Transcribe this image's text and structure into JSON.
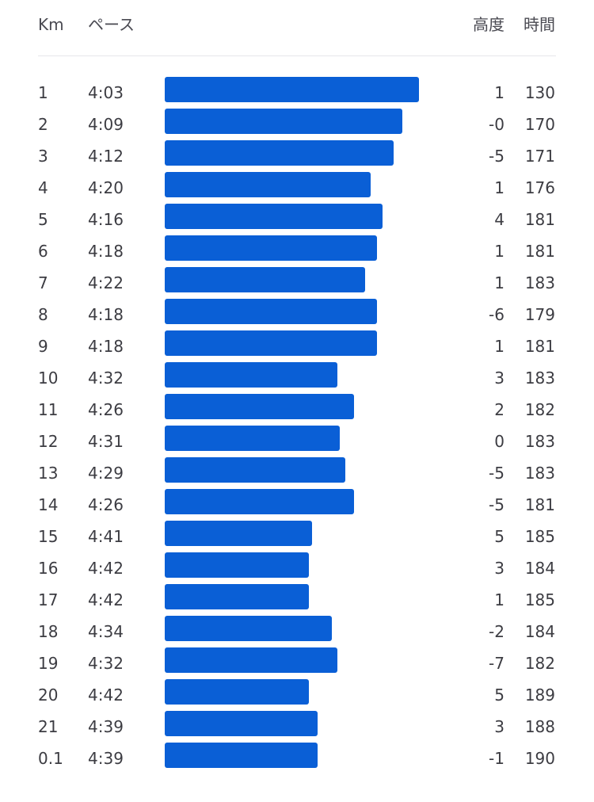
{
  "chart_data": {
    "type": "table",
    "columns": [
      "Km",
      "ペース",
      "高度",
      "時間"
    ],
    "bar_color": "#0a5fd6",
    "rows": [
      {
        "km": "1",
        "pace": "4:03",
        "pace_sec": 243,
        "elev": "1",
        "time": "130"
      },
      {
        "km": "2",
        "pace": "4:09",
        "pace_sec": 249,
        "elev": "-0",
        "time": "170"
      },
      {
        "km": "3",
        "pace": "4:12",
        "pace_sec": 252,
        "elev": "-5",
        "time": "171"
      },
      {
        "km": "4",
        "pace": "4:20",
        "pace_sec": 260,
        "elev": "1",
        "time": "176"
      },
      {
        "km": "5",
        "pace": "4:16",
        "pace_sec": 256,
        "elev": "4",
        "time": "181"
      },
      {
        "km": "6",
        "pace": "4:18",
        "pace_sec": 258,
        "elev": "1",
        "time": "181"
      },
      {
        "km": "7",
        "pace": "4:22",
        "pace_sec": 262,
        "elev": "1",
        "time": "183"
      },
      {
        "km": "8",
        "pace": "4:18",
        "pace_sec": 258,
        "elev": "-6",
        "time": "179"
      },
      {
        "km": "9",
        "pace": "4:18",
        "pace_sec": 258,
        "elev": "1",
        "time": "181"
      },
      {
        "km": "10",
        "pace": "4:32",
        "pace_sec": 272,
        "elev": "3",
        "time": "183"
      },
      {
        "km": "11",
        "pace": "4:26",
        "pace_sec": 266,
        "elev": "2",
        "time": "182"
      },
      {
        "km": "12",
        "pace": "4:31",
        "pace_sec": 271,
        "elev": "0",
        "time": "183"
      },
      {
        "km": "13",
        "pace": "4:29",
        "pace_sec": 269,
        "elev": "-5",
        "time": "183"
      },
      {
        "km": "14",
        "pace": "4:26",
        "pace_sec": 266,
        "elev": "-5",
        "time": "181"
      },
      {
        "km": "15",
        "pace": "4:41",
        "pace_sec": 281,
        "elev": "5",
        "time": "185"
      },
      {
        "km": "16",
        "pace": "4:42",
        "pace_sec": 282,
        "elev": "3",
        "time": "184"
      },
      {
        "km": "17",
        "pace": "4:42",
        "pace_sec": 282,
        "elev": "1",
        "time": "185"
      },
      {
        "km": "18",
        "pace": "4:34",
        "pace_sec": 274,
        "elev": "-2",
        "time": "184"
      },
      {
        "km": "19",
        "pace": "4:32",
        "pace_sec": 272,
        "elev": "-7",
        "time": "182"
      },
      {
        "km": "20",
        "pace": "4:42",
        "pace_sec": 282,
        "elev": "5",
        "time": "189"
      },
      {
        "km": "21",
        "pace": "4:39",
        "pace_sec": 279,
        "elev": "3",
        "time": "188"
      },
      {
        "km": "0.1",
        "pace": "4:39",
        "pace_sec": 279,
        "elev": "-1",
        "time": "190"
      }
    ]
  }
}
